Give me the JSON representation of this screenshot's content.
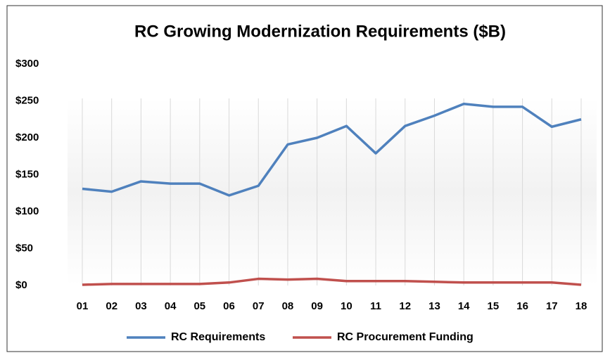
{
  "chart_data": {
    "type": "line",
    "title": "RC Growing Modernization Requirements ($B)",
    "categories": [
      "01",
      "02",
      "03",
      "04",
      "05",
      "06",
      "07",
      "08",
      "09",
      "10",
      "11",
      "12",
      "13",
      "14",
      "15",
      "16",
      "17",
      "18"
    ],
    "series": [
      {
        "name": "RC Requirements",
        "color": "#4f81bd",
        "values": [
          131,
          127,
          141,
          138,
          138,
          122,
          135,
          191,
          200,
          216,
          179,
          216,
          230,
          246,
          242,
          242,
          215,
          225
        ]
      },
      {
        "name": "RC Procurement Funding",
        "color": "#c0504d",
        "values": [
          1,
          2,
          2,
          2,
          2,
          4,
          9,
          8,
          9,
          6,
          6,
          6,
          5,
          4,
          4,
          4,
          4,
          1
        ]
      }
    ],
    "ylim": [
      0,
      300
    ],
    "yticks": [
      {
        "value": 0,
        "label": "$0"
      },
      {
        "value": 50,
        "label": "$50"
      },
      {
        "value": 100,
        "label": "$100"
      },
      {
        "value": 150,
        "label": "$150"
      },
      {
        "value": 200,
        "label": "$200"
      },
      {
        "value": 250,
        "label": "$250"
      },
      {
        "value": 300,
        "label": "$300"
      }
    ],
    "grid": "x",
    "legend": "bottom"
  }
}
